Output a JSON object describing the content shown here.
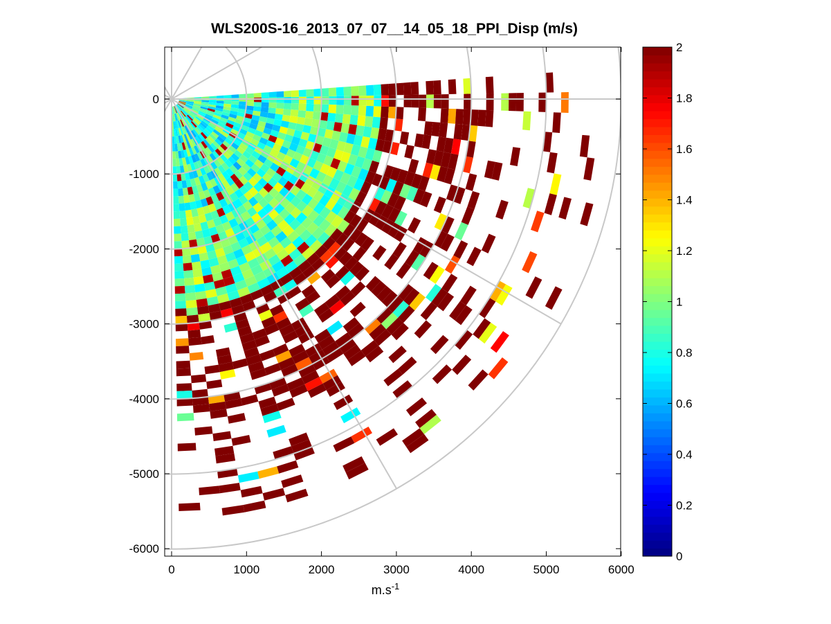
{
  "chart_data": {
    "type": "heatmap",
    "subtype": "ppi-polar-sector",
    "title": "WLS200S-16_2013_07_07__14_05_18_PPI_Disp (m/s)",
    "xlabel_main": "m.s",
    "xlabel_sup": "-1",
    "ylabel": "",
    "xlim": [
      -30,
      6000
    ],
    "ylim": [
      -6100,
      700
    ],
    "x_ticks": [
      0,
      1000,
      2000,
      3000,
      4000,
      5000,
      6000
    ],
    "x_tick_labels": [
      "0",
      "1000",
      "2000",
      "3000",
      "4000",
      "5000",
      "6000"
    ],
    "y_ticks": [
      0,
      -1000,
      -2000,
      -3000,
      -4000,
      -5000,
      -6000
    ],
    "y_tick_labels": [
      "0",
      "-1000",
      "-2000",
      "-3000",
      "-4000",
      "-5000",
      "-6000"
    ],
    "colorbar": {
      "colormap": "jet",
      "range": [
        0,
        2
      ],
      "ticks": [
        0,
        0.2,
        0.4,
        0.6,
        0.8,
        1,
        1.2,
        1.4,
        1.6,
        1.8,
        2
      ],
      "tick_labels": [
        "0",
        "0.2",
        "0.4",
        "0.6",
        "0.8",
        "1",
        "1.2",
        "1.4",
        "1.6",
        "1.8",
        "2"
      ]
    },
    "polar_grid": {
      "color": "#c8c8c8",
      "range_rings_m": [
        1000,
        2000,
        3000,
        4000,
        5000,
        6000
      ],
      "radial_azimuths_deg": [
        0,
        30,
        60,
        90,
        120,
        150,
        180,
        210,
        240,
        270,
        300,
        330
      ]
    },
    "scan_sector_deg": [
      -89,
      4
    ],
    "gate_size_m": 100,
    "value_zones": [
      {
        "range_m": [
          0,
          1500
        ],
        "typical_value": 0.85,
        "note": "mixed cyan/green/yellow near origin"
      },
      {
        "range_m": [
          1500,
          2800
        ],
        "typical_value": 0.95
      },
      {
        "range_m": [
          2800,
          4200
        ],
        "typical_value": 1.9,
        "note": "mostly dark red, sparse"
      },
      {
        "range_m": [
          4200,
          5800
        ],
        "typical_value": 2.0,
        "note": "sparse dark red patches"
      }
    ]
  }
}
